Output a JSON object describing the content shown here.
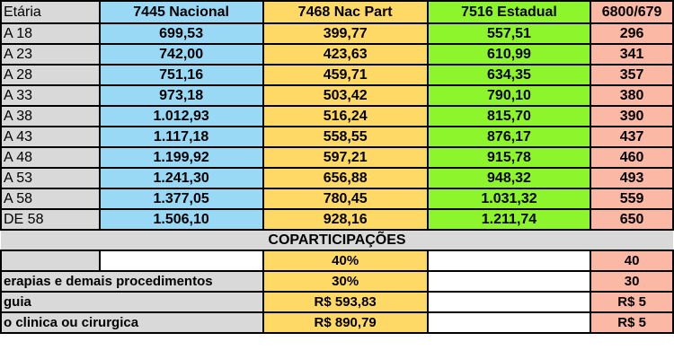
{
  "header": {
    "age_col": "Etária",
    "plans": [
      "7445 Nacional",
      "7468 Nac Part",
      "7516 Estadual",
      "6800/679"
    ]
  },
  "rows": [
    {
      "age": "A 18",
      "values": [
        "699,53",
        "399,77",
        "557,51",
        "296"
      ]
    },
    {
      "age": "A 23",
      "values": [
        "742,00",
        "423,63",
        "610,99",
        "341"
      ]
    },
    {
      "age": "A 28",
      "values": [
        "751,16",
        "459,71",
        "634,35",
        "357"
      ]
    },
    {
      "age": "A 33",
      "values": [
        "973,18",
        "503,42",
        "790,10",
        "380"
      ]
    },
    {
      "age": "A 38",
      "values": [
        "1.012,93",
        "516,24",
        "815,70",
        "390"
      ]
    },
    {
      "age": "A 43",
      "values": [
        "1.117,18",
        "558,55",
        "876,17",
        "437"
      ]
    },
    {
      "age": "A 48",
      "values": [
        "1.199,92",
        "597,21",
        "915,78",
        "460"
      ]
    },
    {
      "age": "A 53",
      "values": [
        "1.241,30",
        "656,88",
        "948,32",
        "493"
      ]
    },
    {
      "age": "A 58",
      "values": [
        "1.377,05",
        "780,45",
        "1.031,32",
        "559"
      ]
    },
    {
      "age": "DE 58",
      "values": [
        "1.506,10",
        "928,16",
        "1.211,74",
        "650"
      ]
    }
  ],
  "coparticipacoes": {
    "title": "COPARTICIPAÇÕES",
    "rows": [
      {
        "label": "",
        "nac_part": "40%",
        "last": "40"
      },
      {
        "label": "erapias e demais procedimentos",
        "nac_part": "30%",
        "last": "30"
      },
      {
        "label": "guia",
        "nac_part": "R$ 593,83",
        "last": "R$ 5"
      },
      {
        "label": "o clinica ou cirurgica",
        "nac_part": "R$ 890,79",
        "last": "R$ 5"
      }
    ]
  }
}
